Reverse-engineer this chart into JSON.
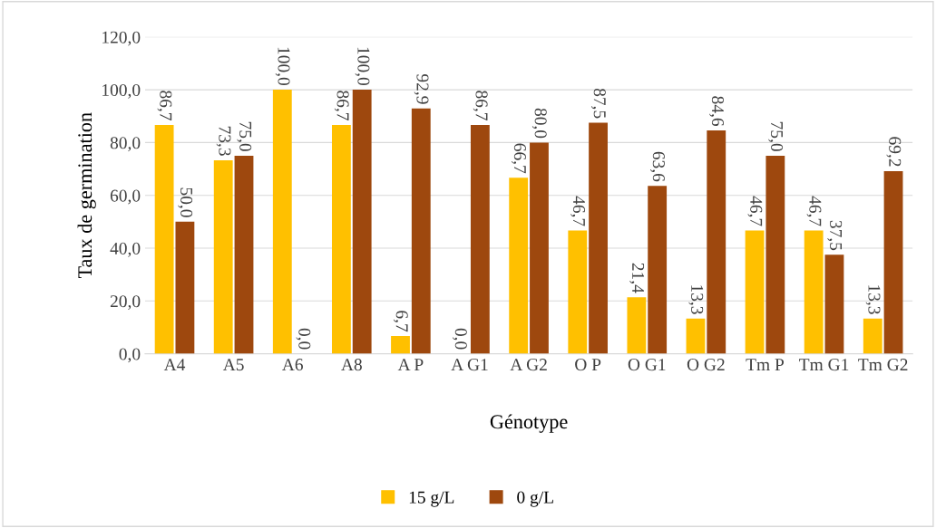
{
  "chart_data": {
    "type": "bar",
    "xlabel": "Génotype",
    "ylabel": "Taux de germination",
    "categories": [
      "A4",
      "A5",
      "A6",
      "A8",
      "A P",
      "A G1",
      "A G2",
      "O P",
      "O G1",
      "O G2",
      "Tm P",
      "Tm G1",
      "Tm G2"
    ],
    "series": [
      {
        "name": "15 g/L",
        "color": "#ffc000",
        "values": [
          86.7,
          73.3,
          100.0,
          86.7,
          6.7,
          0.0,
          66.7,
          46.7,
          21.4,
          13.3,
          46.7,
          46.7,
          13.3
        ],
        "value_labels": [
          "86,7",
          "73,3",
          "100,0",
          "86,7",
          "6,7",
          "0,0",
          "66,7",
          "46,7",
          "21,4",
          "13,3",
          "46,7",
          "46,7",
          "13,3"
        ]
      },
      {
        "name": "0 g/L",
        "color": "#9e480e",
        "values": [
          50.0,
          75.0,
          0.0,
          100.0,
          92.9,
          86.7,
          80.0,
          87.5,
          63.6,
          84.6,
          75.0,
          37.5,
          69.2
        ],
        "value_labels": [
          "50,0",
          "75,0",
          "0,0",
          "100,0",
          "92,9",
          "86,7",
          "80,0",
          "87,5",
          "63,6",
          "84,6",
          "75,0",
          "37,5",
          "69,2"
        ]
      }
    ],
    "ylim": [
      0,
      120
    ],
    "yticks": [
      {
        "value": 0,
        "label": "0,0"
      },
      {
        "value": 20,
        "label": "20,0"
      },
      {
        "value": 40,
        "label": "40,0"
      },
      {
        "value": 60,
        "label": "60,0"
      },
      {
        "value": 80,
        "label": "80,0"
      },
      {
        "value": 100,
        "label": "100,0"
      },
      {
        "value": 120,
        "label": "120,0"
      }
    ],
    "grid": "y",
    "legend": "bottom"
  }
}
